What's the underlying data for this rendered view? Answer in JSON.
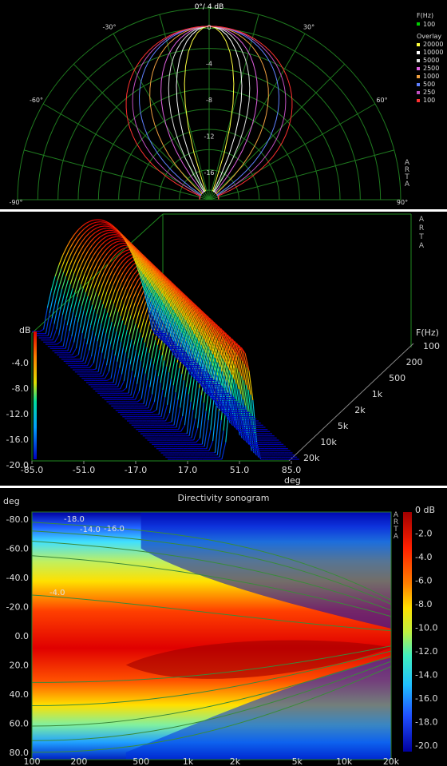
{
  "chart_data": [
    {
      "type": "polar",
      "title": "0°/ 4 dB",
      "watermark": "ARTA",
      "angle_labels": [
        "-90°",
        "-60°",
        "-30°",
        "30°",
        "60°",
        "90°"
      ],
      "radial_labels": [
        "0",
        "-4",
        "-8",
        "-12",
        "-16"
      ],
      "rlim": [
        -18,
        0
      ],
      "legend": {
        "freq_header": "F(Hz)",
        "freq_value": "100",
        "freq_color": "#00cc00",
        "overlay_header": "Overlay",
        "series": [
          {
            "name": "20000",
            "color": "#ffff40",
            "beam_halfwidth_deg": 12
          },
          {
            "name": "10000",
            "color": "#ffffff",
            "beam_halfwidth_deg": 16
          },
          {
            "name": "5000",
            "color": "#e0e0e0",
            "beam_halfwidth_deg": 20
          },
          {
            "name": "2500",
            "color": "#e060e0",
            "beam_halfwidth_deg": 24
          },
          {
            "name": "1000",
            "color": "#f0a040",
            "beam_halfwidth_deg": 30
          },
          {
            "name": "500",
            "color": "#6080ff",
            "beam_halfwidth_deg": 36
          },
          {
            "name": "250",
            "color": "#c050c0",
            "beam_halfwidth_deg": 40
          },
          {
            "name": "100",
            "color": "#ff3030",
            "beam_halfwidth_deg": 44
          }
        ]
      },
      "grid_color": "#1f7a1f"
    },
    {
      "type": "surface3d",
      "watermark": "ARTA",
      "zlabel": "dB",
      "z_ticks": [
        "-4.0",
        "-8.0",
        "-12.0",
        "-16.0",
        "-20.0"
      ],
      "zlim": [
        -20,
        0
      ],
      "xlabel": "deg",
      "x_ticks": [
        "-85.0",
        "-51.0",
        "-17.0",
        "17.0",
        "51.0",
        "85.0"
      ],
      "ylabel": "F(Hz)",
      "y_ticks": [
        "100",
        "200",
        "500",
        "1k",
        "2k",
        "5k",
        "10k",
        "20k"
      ]
    },
    {
      "type": "heatmap",
      "title": "Directivity sonogram",
      "watermark": "ARTA",
      "ylabel": "deg",
      "y_ticks": [
        "-80.0",
        "-60.0",
        "-40.0",
        "-20.0",
        "0.0",
        "20.0",
        "40.0",
        "60.0",
        "80.0"
      ],
      "ylim": [
        -85,
        85
      ],
      "x_ticks": [
        "100",
        "200",
        "500",
        "1k",
        "2k",
        "5k",
        "10k",
        "20k"
      ],
      "x_scale": "log",
      "xlim": [
        100,
        20000
      ],
      "colorbar_ticks": [
        "0 dB",
        "-2.0",
        "-4.0",
        "-6.0",
        "-8.0",
        "-10.0",
        "-12.0",
        "-14.0",
        "-16.0",
        "-18.0",
        "-20.0"
      ],
      "colorbar_range": [
        -20,
        0
      ],
      "contour_labels": [
        "-18.0",
        "-14.0",
        "-16.0",
        "-4.0"
      ]
    }
  ]
}
